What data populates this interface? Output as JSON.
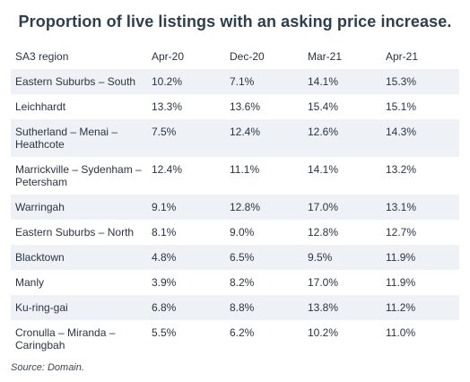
{
  "chart_data": {
    "type": "table",
    "title": "Proportion of live listings with an asking price increase.",
    "columns": [
      "SA3 region",
      "Apr-20",
      "Dec-20",
      "Mar-21",
      "Apr-21"
    ],
    "rows": [
      [
        "Eastern Suburbs – South",
        "10.2%",
        "7.1%",
        "14.1%",
        "15.3%"
      ],
      [
        "Leichhardt",
        "13.3%",
        "13.6%",
        "15.4%",
        "15.1%"
      ],
      [
        "Sutherland – Menai – Heathcote",
        "7.5%",
        "12.4%",
        "12.6%",
        "14.3%"
      ],
      [
        "Marrickville – Sydenham – Petersham",
        "12.4%",
        "11.1%",
        "14.1%",
        "13.2%"
      ],
      [
        "Warringah",
        "9.1%",
        "12.8%",
        "17.0%",
        "13.1%"
      ],
      [
        "Eastern Suburbs – North",
        "8.1%",
        "9.0%",
        "12.8%",
        "12.7%"
      ],
      [
        "Blacktown",
        "4.8%",
        "6.5%",
        "9.5%",
        "11.9%"
      ],
      [
        "Manly",
        "3.9%",
        "8.2%",
        "17.0%",
        "11.9%"
      ],
      [
        "Ku-ring-gai",
        "6.8%",
        "8.8%",
        "13.8%",
        "11.2%"
      ],
      [
        "Cronulla – Miranda – Caringbah",
        "5.5%",
        "6.2%",
        "10.2%",
        "11.0%"
      ]
    ],
    "source": "Source: Domain."
  },
  "colors": {
    "title": "#2d3e50",
    "text": "#2b3440",
    "stripe": "#eef2f6"
  }
}
